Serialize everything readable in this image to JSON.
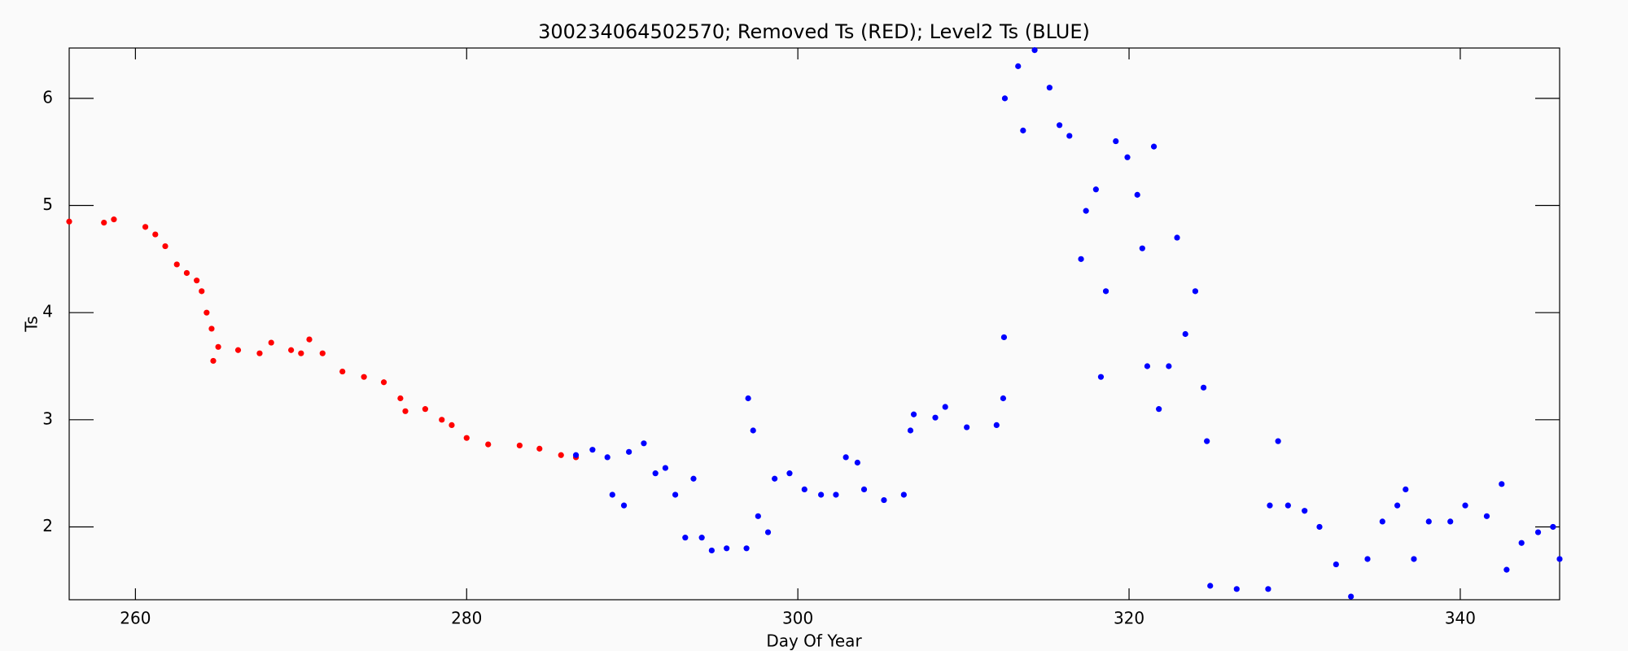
{
  "chart_data": {
    "type": "scatter",
    "title": "300234064502570; Removed Ts (RED); Level2 Ts (BLUE)",
    "x_label": "Day Of Year",
    "y_label": "Ts",
    "xlim": [
      256,
      346
    ],
    "xticks": [
      260,
      280,
      300,
      320,
      340
    ],
    "ylim": [
      1.32,
      6.47
    ],
    "yticks": [
      2,
      3,
      4,
      5,
      6
    ],
    "series": [
      {
        "name": "Removed Ts",
        "color": "#ff0000",
        "x": [
          256,
          258.1,
          258.7,
          260.6,
          261.2,
          261.8,
          262.5,
          263.1,
          263.7,
          264.0,
          264.3,
          264.6,
          264.7,
          265,
          266.2,
          267.5,
          268.2,
          269.4,
          270,
          270.5,
          271.3,
          272.5,
          273.8,
          275,
          276,
          276.3,
          277.5,
          278.5,
          279.1,
          280,
          281.3,
          283.2,
          284.4,
          285.7,
          286.6
        ],
        "values": [
          4.85,
          4.84,
          4.87,
          4.8,
          4.73,
          4.62,
          4.45,
          4.37,
          4.3,
          4.2,
          4.0,
          3.85,
          3.55,
          3.68,
          3.65,
          3.62,
          3.72,
          3.65,
          3.62,
          3.75,
          3.62,
          3.45,
          3.4,
          3.35,
          3.2,
          3.08,
          3.1,
          3.0,
          2.95,
          2.83,
          2.77,
          2.76,
          2.73,
          2.67,
          2.65
        ]
      },
      {
        "name": "Level2 Ts",
        "color": "#0000ff",
        "x": [
          286.6,
          287.6,
          288.5,
          288.8,
          289.5,
          289.8,
          290.7,
          291.4,
          292,
          292.6,
          293.2,
          293.7,
          294.2,
          294.8,
          295.7,
          296.9,
          297,
          297.3,
          297.6,
          298.2,
          298.6,
          299.5,
          300.4,
          301.4,
          302.3,
          302.9,
          303.6,
          304,
          305.2,
          306.4,
          306.8,
          307,
          308.3,
          308.9,
          310.2,
          312,
          312.4,
          312.45,
          312.5,
          313.3,
          313.6,
          314.3,
          315.2,
          315.8,
          316.4,
          317.1,
          317.4,
          318,
          318.3,
          318.6,
          319.2,
          319.9,
          320.5,
          320.8,
          321.1,
          321.5,
          321.8,
          322.4,
          322.9,
          323.4,
          324,
          324.5,
          324.7,
          324.9,
          326.5,
          328.4,
          328.5,
          329,
          329.6,
          330.6,
          331.5,
          332.5,
          333.4,
          334.4,
          335.3,
          336.2,
          336.7,
          337.2,
          338.1,
          339.4,
          340.3,
          341.6,
          342.5,
          342.8,
          343.7,
          344.7,
          345.6,
          346
        ],
        "values": [
          2.67,
          2.72,
          2.65,
          2.3,
          2.2,
          2.7,
          2.78,
          2.5,
          2.55,
          2.3,
          1.9,
          2.45,
          1.9,
          1.78,
          1.8,
          1.8,
          3.2,
          2.9,
          2.1,
          1.95,
          2.45,
          2.5,
          2.35,
          2.3,
          2.3,
          2.65,
          2.6,
          2.35,
          2.25,
          2.3,
          2.9,
          3.05,
          3.02,
          3.12,
          2.93,
          2.95,
          3.2,
          3.77,
          6.0,
          6.3,
          5.7,
          6.45,
          6.1,
          5.75,
          5.65,
          4.5,
          4.95,
          5.15,
          3.4,
          4.2,
          5.6,
          5.45,
          5.1,
          4.6,
          3.5,
          5.55,
          3.1,
          3.5,
          4.7,
          3.8,
          4.2,
          3.3,
          2.8,
          1.45,
          1.42,
          1.42,
          2.2,
          2.8,
          2.2,
          2.15,
          2.0,
          1.65,
          1.35,
          1.7,
          2.05,
          2.2,
          2.35,
          1.7,
          2.05,
          2.05,
          2.2,
          2.1,
          2.4,
          1.6,
          1.85,
          1.95,
          2.0,
          1.7
        ]
      }
    ]
  }
}
